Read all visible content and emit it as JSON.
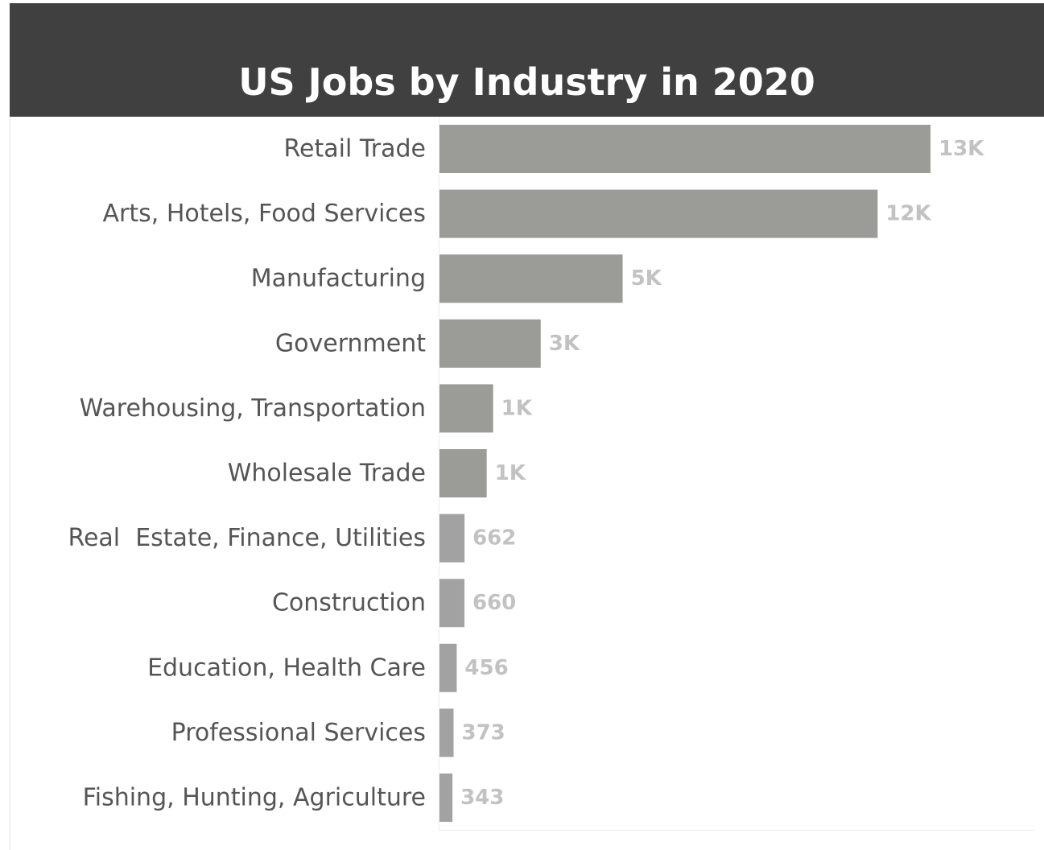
{
  "chart_data": {
    "type": "bar",
    "orientation": "horizontal",
    "title": "US Jobs by Industry in 2020",
    "xlabel": "",
    "ylabel": "",
    "grid": false,
    "categories": [
      "Retail Trade",
      "Arts, Hotels, Food Services",
      "Manufacturing",
      "Government",
      "Warehousing, Transportation",
      "Wholesale Trade",
      "Real  Estate, Finance, Utilities",
      "Construction",
      "Education, Health Care",
      "Professional Services",
      "Fishing, Hunting, Agriculture"
    ],
    "values": [
      13000,
      11600,
      4850,
      2680,
      1420,
      1250,
      662,
      660,
      456,
      373,
      343
    ],
    "data_labels": [
      "13K",
      "12K",
      "5K",
      "3K",
      "1K",
      "1K",
      "662",
      "660",
      "456",
      "373",
      "343"
    ],
    "xlim": [
      0,
      13000
    ],
    "colors": {
      "title_bar": "#404040",
      "title_text": "#ffffff",
      "bar": "#9b9c98",
      "bar_small": "#a2a2a2",
      "category_text": "#555555",
      "value_text": "#c2c2c2"
    }
  }
}
